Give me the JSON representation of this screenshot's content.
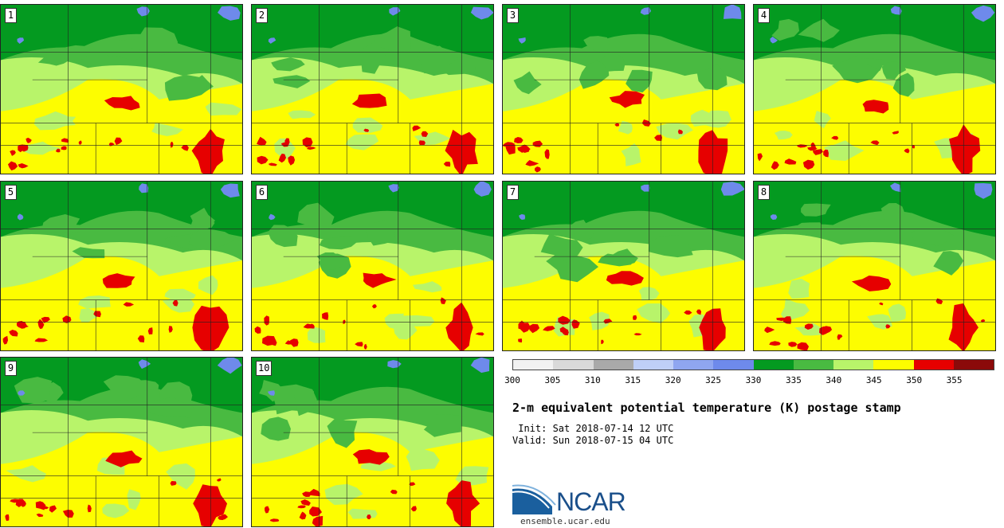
{
  "title": "2-m equivalent potential temperature (K) postage stamp",
  "init_text": " Init: Sat 2018-07-14 12 UTC",
  "valid_text": "Valid: Sun 2018-07-15 04 UTC",
  "members": [
    "1",
    "2",
    "3",
    "4",
    "5",
    "6",
    "7",
    "8",
    "9",
    "10"
  ],
  "colorbar": {
    "colors": [
      "#f2f2f2",
      "#d9d9d9",
      "#a9a9a9",
      "#bfcff7",
      "#8fa6f0",
      "#6e8aeb",
      "#049a20",
      "#49ba41",
      "#b8f46a",
      "#fdfd00",
      "#e60000",
      "#8b0a0a"
    ],
    "ticks": [
      "300",
      "305",
      "310",
      "315",
      "320",
      "325",
      "330",
      "335",
      "340",
      "345",
      "350",
      "355"
    ],
    "units": "K"
  },
  "logo": {
    "text": "NCAR",
    "url": "ensemble.ucar.edu"
  },
  "field_colors": {
    "lakes": "#6e8aeb",
    "dark_green": "#049a20",
    "green": "#49ba41",
    "light_green": "#b8f46a",
    "yellow": "#fdfd00",
    "red": "#e60000"
  }
}
